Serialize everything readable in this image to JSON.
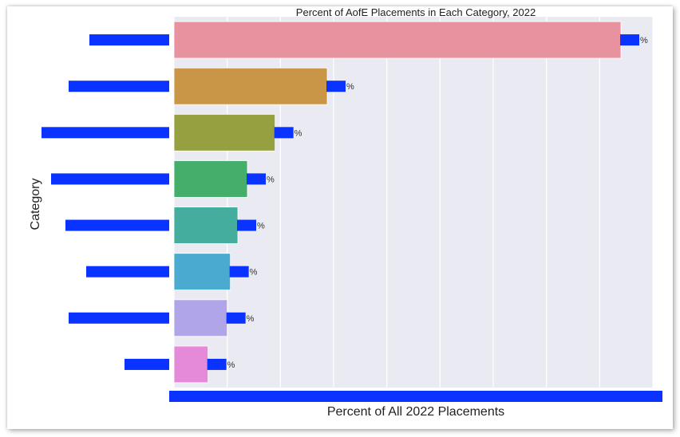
{
  "chart_data": {
    "type": "bar",
    "orientation": "horizontal",
    "title": "Percent of AofE Placements in Each Category, 2022",
    "xlabel": "Percent of All 2022 Placements",
    "ylabel": "Category",
    "xlim": [
      0,
      45
    ],
    "grid": true,
    "legend": "none",
    "categories": [
      "",
      "",
      "",
      "",
      "",
      "",
      "",
      ""
    ],
    "values": [
      42.0,
      14.4,
      9.5,
      6.9,
      6.0,
      5.3,
      5.0,
      3.2
    ],
    "colors": [
      "#e8929f",
      "#c99546",
      "#97a040",
      "#45ae6a",
      "#45ad9d",
      "#4aaad0",
      "#b1a5ea",
      "#e58ad8"
    ],
    "background": "#eaeaf2"
  }
}
